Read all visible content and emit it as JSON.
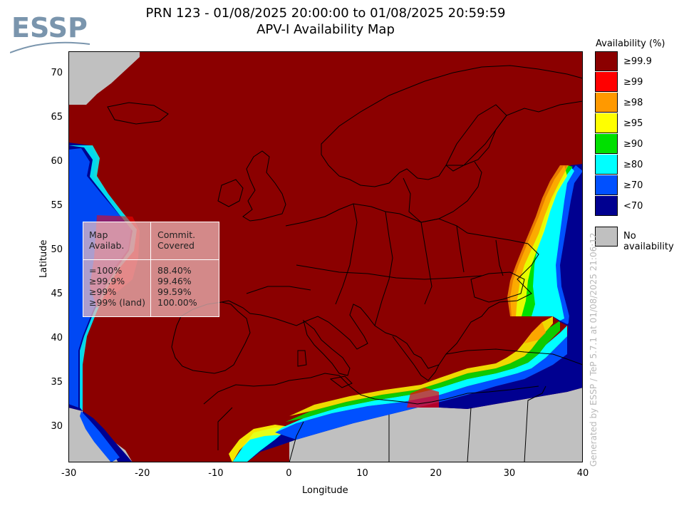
{
  "header": {
    "title_line1": "PRN 123 - 01/08/2025 20:00:00 to 01/08/2025 20:59:59",
    "title_line2": "APV-I Availability Map",
    "logo_text": "ESSP"
  },
  "axes": {
    "xlabel": "Longitude",
    "ylabel": "Latitude",
    "x_ticks": [
      "-30",
      "-20",
      "-10",
      "0",
      "10",
      "20",
      "30",
      "40"
    ],
    "y_ticks": [
      "70",
      "65",
      "60",
      "55",
      "50",
      "45",
      "40",
      "35",
      "30"
    ],
    "xlim": [
      -30,
      40
    ],
    "ylim": [
      26,
      72.5
    ]
  },
  "legend": {
    "title": "Availability (%)",
    "items": [
      {
        "label": "≥99.9",
        "color": "#8b0000"
      },
      {
        "label": "≥99",
        "color": "#ff0000"
      },
      {
        "label": "≥98",
        "color": "#ff9900"
      },
      {
        "label": "≥95",
        "color": "#ffff00"
      },
      {
        "label": "≥90",
        "color": "#00e000"
      },
      {
        "label": "≥80",
        "color": "#00ffff"
      },
      {
        "label": "≥70",
        "color": "#0050ff"
      },
      {
        "label": "<70",
        "color": "#000090"
      }
    ],
    "no_availability": {
      "label": "No availability",
      "color": "#c0c0c0"
    }
  },
  "stats_table": {
    "col1_header": [
      "Map",
      "Availab."
    ],
    "col2_header": [
      "Commit.",
      "Covered"
    ],
    "rows": [
      {
        "map": "=100%",
        "covered": "88.40%"
      },
      {
        "map": "≥99.9%",
        "covered": "99.46%"
      },
      {
        "map": "≥99%",
        "covered": "99.59%"
      },
      {
        "map": "≥99% (land)",
        "covered": "100.00%"
      }
    ]
  },
  "footer_vertical": "Generated by ESSP / TeP 5.7.1 at 01/08/2025 21:06:12",
  "colors": {
    "availability_high": "#8b0000",
    "no_availability": "#c0c0c0"
  }
}
